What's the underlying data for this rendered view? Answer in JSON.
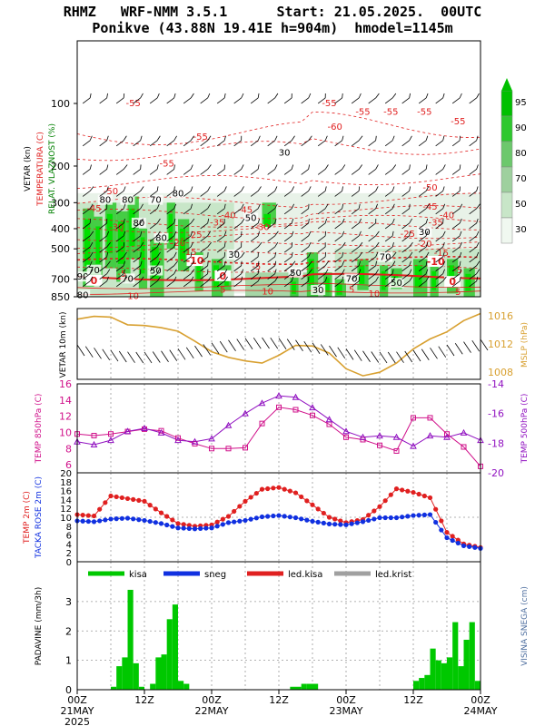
{
  "header": {
    "line1": "RHMZ   WRF-NMM 3.5.1      Start: 21.05.2025.  00UTC",
    "line2": "Ponikve (43.88N 19.41E h=904m)  hmodel=1145m"
  },
  "colors": {
    "red": "#e02020",
    "green": "#00c800",
    "blue": "#1030e0",
    "purple": "#9010c0",
    "magenta": "#d0108a",
    "orange": "#d8a030",
    "gray": "#a0a0a0"
  },
  "time_axis": {
    "labels": [
      "00Z",
      "12Z",
      "00Z",
      "12Z",
      "00Z",
      "12Z",
      "00Z"
    ],
    "day_labels": [
      "21MAY",
      "22MAY",
      "23MAY",
      "24MAY"
    ],
    "year": "2025",
    "hours": [
      0,
      12,
      24,
      36,
      48,
      60,
      72
    ]
  },
  "chart_data": [
    {
      "type": "heatmap",
      "panel": "cross_section",
      "ylabels": [
        "VETAR (kn)",
        "TEMPERATURA (C)",
        "RELAT. VLAZNOST (%)"
      ],
      "ylim": [
        850,
        50
      ],
      "pressure_ticks": [
        100,
        200,
        300,
        400,
        500,
        700,
        850
      ],
      "humidity_legend": [
        95,
        90,
        80,
        70,
        50,
        30
      ],
      "humidity_contour_labels": [
        {
          "t": 5,
          "p": 295,
          "v": "80"
        },
        {
          "t": 9,
          "p": 295,
          "v": "80"
        },
        {
          "t": 14,
          "p": 295,
          "v": "70"
        },
        {
          "t": 18,
          "p": 275,
          "v": "80"
        },
        {
          "t": 11,
          "p": 380,
          "v": "80"
        },
        {
          "t": 15,
          "p": 450,
          "v": "80"
        },
        {
          "t": 31,
          "p": 360,
          "v": "50"
        },
        {
          "t": 28,
          "p": 540,
          "v": "30"
        },
        {
          "t": 37,
          "p": 175,
          "v": "30"
        },
        {
          "t": 62,
          "p": 420,
          "v": "30"
        },
        {
          "t": 55,
          "p": 555,
          "v": "70"
        },
        {
          "t": 3,
          "p": 640,
          "v": "70"
        },
        {
          "t": 9,
          "p": 705,
          "v": "70"
        },
        {
          "t": 14,
          "p": 645,
          "v": "50"
        },
        {
          "t": 1,
          "p": 690,
          "v": "90"
        },
        {
          "t": 39,
          "p": 660,
          "v": "50"
        },
        {
          "t": 43,
          "p": 800,
          "v": "30"
        },
        {
          "t": 49,
          "p": 705,
          "v": "70"
        },
        {
          "t": 57,
          "p": 740,
          "v": "50"
        },
        {
          "t": 1,
          "p": 845,
          "v": "80"
        }
      ],
      "temp_contour_labels": [
        {
          "t": 10,
          "p": 100,
          "v": "-55"
        },
        {
          "t": 45,
          "p": 100,
          "v": "-55"
        },
        {
          "t": 51,
          "p": 110,
          "v": "-55"
        },
        {
          "t": 56,
          "p": 110,
          "v": "-55"
        },
        {
          "t": 62,
          "p": 110,
          "v": "-55"
        },
        {
          "t": 68,
          "p": 122,
          "v": "-55"
        },
        {
          "t": 22,
          "p": 145,
          "v": "-55"
        },
        {
          "t": 46,
          "p": 130,
          "v": "-60"
        },
        {
          "t": 16,
          "p": 195,
          "v": "-55"
        },
        {
          "t": 6,
          "p": 265,
          "v": "-50"
        },
        {
          "t": 63,
          "p": 255,
          "v": "-50"
        },
        {
          "t": 3,
          "p": 320,
          "v": "-45"
        },
        {
          "t": 30,
          "p": 325,
          "v": "-45"
        },
        {
          "t": 63,
          "p": 315,
          "v": "-45"
        },
        {
          "t": 27,
          "p": 345,
          "v": "-40"
        },
        {
          "t": 66,
          "p": 345,
          "v": "-40"
        },
        {
          "t": 25,
          "p": 375,
          "v": "-35"
        },
        {
          "t": 64,
          "p": 375,
          "v": "-35"
        },
        {
          "t": 7,
          "p": 395,
          "v": "-30"
        },
        {
          "t": 33,
          "p": 395,
          "v": "-30"
        },
        {
          "t": 59,
          "p": 425,
          "v": "-25"
        },
        {
          "t": 21,
          "p": 430,
          "v": "-25"
        },
        {
          "t": 18,
          "p": 470,
          "v": "-20"
        },
        {
          "t": 62,
          "p": 475,
          "v": "-20"
        },
        {
          "t": 20,
          "p": 520,
          "v": "-15"
        },
        {
          "t": 65,
          "p": 525,
          "v": "-15"
        },
        {
          "t": 21,
          "p": 575,
          "v": "-10"
        },
        {
          "t": 64,
          "p": 580,
          "v": "-10"
        },
        {
          "t": 32,
          "p": 610,
          "v": "-5"
        },
        {
          "t": 68,
          "p": 635,
          "v": "-5"
        },
        {
          "t": 8,
          "p": 660,
          "v": "-5"
        },
        {
          "t": 26,
          "p": 680,
          "v": "0"
        },
        {
          "t": 3,
          "p": 715,
          "v": "0"
        },
        {
          "t": 67,
          "p": 725,
          "v": "0"
        },
        {
          "t": 26,
          "p": 790,
          "v": "5"
        },
        {
          "t": 49,
          "p": 790,
          "v": "5"
        },
        {
          "t": 34,
          "p": 805,
          "v": "10"
        },
        {
          "t": 53,
          "p": 825,
          "v": "10"
        },
        {
          "t": 10,
          "p": 845,
          "v": "10"
        },
        {
          "t": 68,
          "p": 810,
          "v": "5"
        }
      ]
    },
    {
      "type": "line",
      "panel": "wind_mslp",
      "ylabel_left": "VETAR 10m (kn)",
      "ylabel_right": "MSLP (hPa)",
      "ylim": [
        1007,
        1017
      ],
      "ticks_right": [
        1008,
        1012,
        1016
      ],
      "x_hours": [
        0,
        3,
        6,
        9,
        12,
        15,
        18,
        21,
        24,
        27,
        30,
        33,
        36,
        39,
        42,
        45,
        48,
        51,
        54,
        57,
        60,
        63,
        66,
        69,
        72
      ],
      "mslp": [
        1015.5,
        1015.9,
        1015.8,
        1014.7,
        1014.6,
        1014.3,
        1013.8,
        1012.4,
        1010.9,
        1010.1,
        1009.6,
        1009.3,
        1010.4,
        1011.8,
        1011.7,
        1010.7,
        1008.5,
        1007.5,
        1008.0,
        1009.3,
        1011.3,
        1012.7,
        1013.7,
        1015.3,
        1016.3
      ]
    },
    {
      "type": "line",
      "panel": "temp_upper",
      "ylabel_left": "TEMP 850hPa (C)",
      "ylabel_right": "TEMP 500hPa (C)",
      "ylim_left": [
        5,
        16
      ],
      "ticks_left": [
        6,
        8,
        10,
        12,
        14,
        16
      ],
      "ylim_right": [
        -20,
        -14
      ],
      "ticks_right": [
        -20,
        -18,
        -16,
        -14
      ],
      "x_hours": [
        0,
        3,
        6,
        9,
        12,
        15,
        18,
        21,
        24,
        27,
        30,
        33,
        36,
        39,
        42,
        45,
        48,
        51,
        54,
        57,
        60,
        63,
        66,
        69,
        72
      ],
      "series": [
        {
          "name": "TEMP 850hPa",
          "values": [
            9.8,
            9.6,
            9.8,
            10.1,
            10.4,
            10.2,
            9.3,
            8.6,
            8.0,
            8.0,
            8.1,
            11.1,
            13.1,
            12.8,
            12.1,
            11.0,
            9.4,
            9.1,
            8.4,
            7.7,
            11.8,
            11.8,
            9.8,
            8.2,
            5.8
          ]
        },
        {
          "name": "TEMP 500hPa",
          "values": [
            -17.9,
            -18.1,
            -17.8,
            -17.2,
            -17.0,
            -17.3,
            -17.8,
            -17.9,
            -17.7,
            -16.8,
            -16.0,
            -15.3,
            -14.8,
            -14.9,
            -15.6,
            -16.4,
            -17.2,
            -17.6,
            -17.5,
            -17.6,
            -18.2,
            -17.5,
            -17.6,
            -17.3,
            -17.8
          ]
        }
      ]
    },
    {
      "type": "line",
      "panel": "temp_2m",
      "ylabels": [
        "TEMP 2m (C)",
        "TACKA ROSE 2m (C)"
      ],
      "ylim": [
        0,
        20
      ],
      "ticks": [
        0,
        2,
        4,
        6,
        8,
        10,
        12,
        14,
        16,
        18,
        20
      ],
      "x_hours": [
        0,
        3,
        6,
        9,
        12,
        15,
        18,
        21,
        24,
        27,
        30,
        33,
        36,
        39,
        42,
        45,
        48,
        51,
        54,
        57,
        60,
        63,
        66,
        69,
        72
      ],
      "series": [
        {
          "name": "TEMP 2m",
          "values": [
            10.6,
            10.3,
            14.8,
            14.2,
            13.6,
            11.0,
            8.6,
            8.0,
            8.3,
            10.2,
            13.6,
            16.3,
            16.7,
            15.5,
            12.8,
            10.0,
            8.8,
            9.5,
            12.4,
            16.4,
            15.6,
            14.4,
            6.6,
            4.0,
            3.2
          ]
        },
        {
          "name": "TACKA ROSE 2m",
          "values": [
            9.2,
            9.0,
            9.6,
            9.8,
            9.3,
            8.6,
            7.6,
            7.4,
            7.6,
            8.8,
            9.3,
            10.1,
            10.4,
            9.9,
            9.1,
            8.5,
            8.3,
            9.0,
            9.9,
            9.9,
            10.4,
            10.6,
            5.4,
            3.6,
            3.0
          ]
        }
      ]
    },
    {
      "type": "bar",
      "panel": "precipitation",
      "ylabel_left": "PADAVINE (mm/3h)",
      "ylabel_right": "VISINA SNEGA (cm)",
      "ylim": [
        0,
        3.8
      ],
      "ticks": [
        0,
        1,
        2,
        3
      ],
      "legend": [
        "kisa",
        "sneg",
        "led.kisa",
        "led.krist"
      ],
      "x_hours": [
        0,
        1,
        2,
        3,
        4,
        5,
        6,
        7,
        8,
        9,
        10,
        11,
        12,
        13,
        14,
        15,
        16,
        17,
        18,
        19,
        20,
        21,
        22,
        23,
        24,
        25,
        26,
        27,
        28,
        29,
        30,
        31,
        32,
        33,
        34,
        35,
        36,
        37,
        38,
        39,
        40,
        41,
        42,
        43,
        44,
        45,
        46,
        47,
        48,
        49,
        50,
        51,
        52,
        53,
        54,
        55,
        56,
        57,
        58,
        59,
        60,
        61,
        62,
        63,
        64,
        65,
        66,
        67,
        68,
        69,
        70,
        71
      ],
      "values": [
        0,
        0,
        0,
        0,
        0,
        0,
        0.1,
        0.8,
        1.1,
        3.4,
        0.9,
        0.1,
        0,
        0.2,
        1.1,
        1.2,
        2.4,
        2.9,
        0.3,
        0.2,
        0,
        0,
        0,
        0,
        0,
        0,
        0,
        0,
        0,
        0,
        0,
        0,
        0,
        0,
        0,
        0,
        0,
        0,
        0.1,
        0.1,
        0.2,
        0.2,
        0.2,
        0,
        0,
        0,
        0,
        0,
        0,
        0,
        0,
        0,
        0,
        0,
        0,
        0,
        0,
        0,
        0,
        0,
        0.3,
        0.4,
        0.5,
        1.4,
        1.0,
        0.9,
        1.1,
        2.3,
        0.8,
        1.7,
        2.3,
        0.3
      ]
    }
  ]
}
